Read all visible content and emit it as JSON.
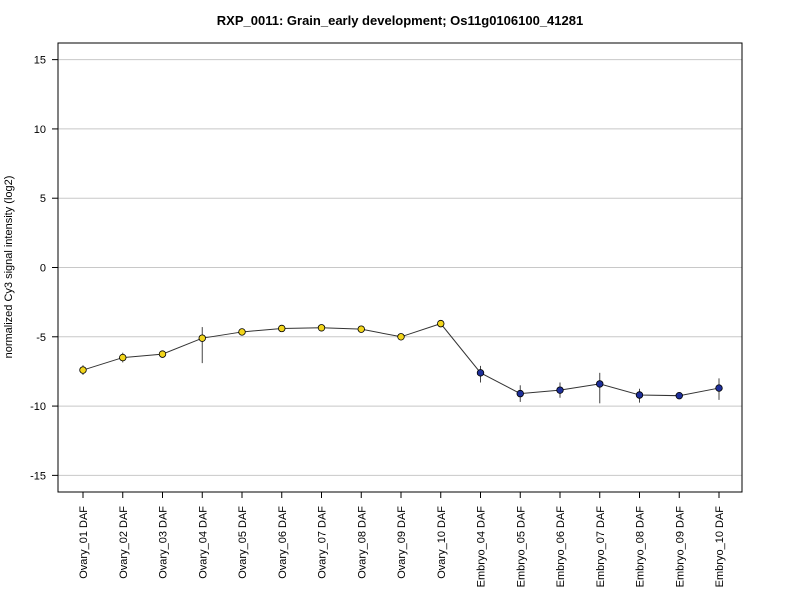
{
  "chart_data": {
    "type": "line",
    "title": "RXP_0011: Grain_early development; Os11g0106100_41281",
    "xlabel": "",
    "ylabel": "normalized Cy3 signal intensity (log2)",
    "ylim": [
      -16.2,
      16.2
    ],
    "yticks": [
      -15,
      -10,
      -5,
      0,
      5,
      10,
      15
    ],
    "grid": true,
    "categories": [
      "Ovary_01 DAF",
      "Ovary_02 DAF",
      "Ovary_03 DAF",
      "Ovary_04 DAF",
      "Ovary_05 DAF",
      "Ovary_06 DAF",
      "Ovary_07 DAF",
      "Ovary_08 DAF",
      "Ovary_09 DAF",
      "Ovary_10 DAF",
      "Embryo_04 DAF",
      "Embryo_05 DAF",
      "Embryo_06 DAF",
      "Embryo_07 DAF",
      "Embryo_08 DAF",
      "Embryo_09 DAF",
      "Embryo_10 DAF"
    ],
    "values": [
      -7.4,
      -6.5,
      -6.25,
      -5.1,
      -4.65,
      -4.4,
      -4.35,
      -4.45,
      -5.0,
      -4.05,
      -7.6,
      -9.1,
      -8.85,
      -8.4,
      -9.2,
      -9.25,
      -8.7
    ],
    "errors": [
      [
        -7.75,
        -7.05
      ],
      [
        -6.85,
        -6.15
      ],
      [
        -6.4,
        -6.1
      ],
      [
        -6.9,
        -4.3
      ],
      [
        -4.85,
        -4.45
      ],
      [
        -4.5,
        -4.3
      ],
      [
        -4.45,
        -4.25
      ],
      [
        -4.55,
        -4.35
      ],
      [
        -5.1,
        -4.9
      ],
      [
        -4.15,
        -3.95
      ],
      [
        -8.3,
        -7.1
      ],
      [
        -9.7,
        -8.5
      ],
      [
        -9.4,
        -8.3
      ],
      [
        -9.8,
        -7.6
      ],
      [
        -9.75,
        -8.75
      ],
      [
        -9.35,
        -9.15
      ],
      [
        -9.55,
        -8.0
      ]
    ],
    "point_colors": [
      "#f2d51b",
      "#f2d51b",
      "#f2d51b",
      "#f2d51b",
      "#f2d51b",
      "#f2d51b",
      "#f2d51b",
      "#f2d51b",
      "#f2d51b",
      "#f2d51b",
      "#1e2f9a",
      "#1e2f9a",
      "#1e2f9a",
      "#1e2f9a",
      "#1e2f9a",
      "#1e2f9a",
      "#1e2f9a"
    ]
  }
}
